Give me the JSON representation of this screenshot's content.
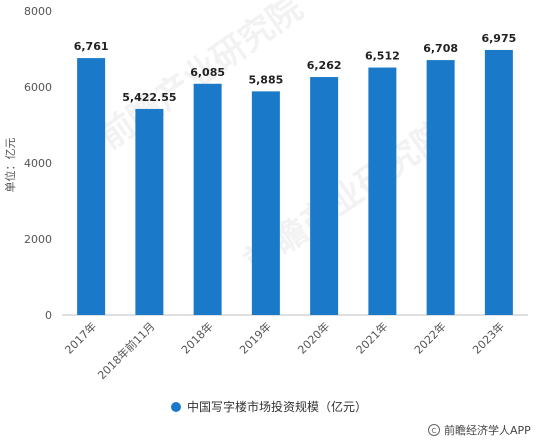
{
  "chart_data": {
    "type": "bar",
    "title": "",
    "xlabel": "",
    "ylabel": "单位：亿元",
    "categories": [
      "2017年",
      "2018年前11月",
      "2018年",
      "2019年",
      "2020年",
      "2021年",
      "2022年",
      "2023年"
    ],
    "series": [
      {
        "name": "中国写字楼市场投资规模（亿元）",
        "values": [
          6761,
          5422.55,
          6085,
          5885,
          6262,
          6512,
          6708,
          6975
        ],
        "labels": [
          "6,761",
          "5,422.55",
          "6,085",
          "5,885",
          "6,262",
          "6,512",
          "6,708",
          "6,975"
        ],
        "color": "#1a7ac9"
      }
    ],
    "ylim": [
      0,
      8000
    ],
    "yticks": [
      "0",
      "2000",
      "4000",
      "6000",
      "8000"
    ],
    "grid": false,
    "legend_position": "bottom"
  },
  "watermark": "前瞻产业研究院",
  "footer": {
    "text": "前瞻经济学人APP",
    "icon": "copyright-icon"
  }
}
